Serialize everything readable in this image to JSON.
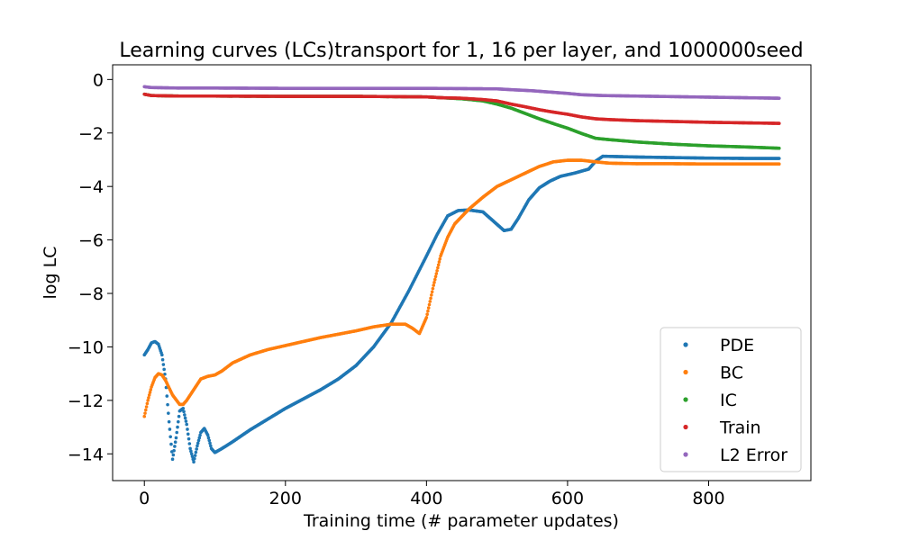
{
  "chart_data": {
    "type": "scatter",
    "title": "Learning curves (LCs)transport for 1, 16 per layer, and 1000000seed",
    "xlabel": "Training time (# parameter updates)",
    "ylabel": "log LC",
    "xlim": [
      -45,
      945
    ],
    "ylim": [
      -15,
      0.55
    ],
    "xticks": [
      0,
      200,
      400,
      600,
      800
    ],
    "yticks": [
      0,
      -2,
      -4,
      -6,
      -8,
      -10,
      -12,
      -14
    ],
    "grid": false,
    "legend_position": "lower-right",
    "series": [
      {
        "name": "PDE",
        "color": "#1f77b4",
        "points": [
          [
            0,
            -10.3
          ],
          [
            5,
            -10.1
          ],
          [
            10,
            -9.85
          ],
          [
            15,
            -9.8
          ],
          [
            20,
            -9.9
          ],
          [
            25,
            -10.3
          ],
          [
            30,
            -11.2
          ],
          [
            35,
            -12.8
          ],
          [
            40,
            -14.2
          ],
          [
            45,
            -13.4
          ],
          [
            50,
            -12.4
          ],
          [
            55,
            -12.3
          ],
          [
            60,
            -12.9
          ],
          [
            65,
            -13.8
          ],
          [
            70,
            -14.3
          ],
          [
            75,
            -13.7
          ],
          [
            80,
            -13.2
          ],
          [
            85,
            -13.05
          ],
          [
            90,
            -13.3
          ],
          [
            95,
            -13.8
          ],
          [
            100,
            -13.95
          ],
          [
            110,
            -13.8
          ],
          [
            125,
            -13.55
          ],
          [
            150,
            -13.1
          ],
          [
            175,
            -12.7
          ],
          [
            200,
            -12.3
          ],
          [
            225,
            -11.95
          ],
          [
            250,
            -11.6
          ],
          [
            275,
            -11.2
          ],
          [
            300,
            -10.7
          ],
          [
            325,
            -10.0
          ],
          [
            350,
            -9.1
          ],
          [
            375,
            -7.9
          ],
          [
            400,
            -6.6
          ],
          [
            415,
            -5.8
          ],
          [
            430,
            -5.1
          ],
          [
            445,
            -4.9
          ],
          [
            460,
            -4.88
          ],
          [
            480,
            -4.95
          ],
          [
            495,
            -5.3
          ],
          [
            510,
            -5.65
          ],
          [
            520,
            -5.6
          ],
          [
            530,
            -5.2
          ],
          [
            545,
            -4.5
          ],
          [
            560,
            -4.05
          ],
          [
            575,
            -3.8
          ],
          [
            590,
            -3.62
          ],
          [
            610,
            -3.5
          ],
          [
            630,
            -3.35
          ],
          [
            640,
            -3.05
          ],
          [
            650,
            -2.87
          ],
          [
            700,
            -2.9
          ],
          [
            750,
            -2.92
          ],
          [
            800,
            -2.94
          ],
          [
            850,
            -2.95
          ],
          [
            900,
            -2.95
          ]
        ]
      },
      {
        "name": "BC",
        "color": "#ff7f0e",
        "points": [
          [
            0,
            -12.6
          ],
          [
            5,
            -12.0
          ],
          [
            10,
            -11.5
          ],
          [
            15,
            -11.15
          ],
          [
            20,
            -11.0
          ],
          [
            25,
            -11.05
          ],
          [
            30,
            -11.25
          ],
          [
            40,
            -11.8
          ],
          [
            50,
            -12.15
          ],
          [
            55,
            -12.15
          ],
          [
            60,
            -12.0
          ],
          [
            70,
            -11.6
          ],
          [
            80,
            -11.2
          ],
          [
            90,
            -11.1
          ],
          [
            100,
            -11.05
          ],
          [
            110,
            -10.9
          ],
          [
            125,
            -10.6
          ],
          [
            150,
            -10.3
          ],
          [
            175,
            -10.1
          ],
          [
            200,
            -9.95
          ],
          [
            250,
            -9.65
          ],
          [
            300,
            -9.4
          ],
          [
            325,
            -9.25
          ],
          [
            350,
            -9.15
          ],
          [
            370,
            -9.15
          ],
          [
            380,
            -9.3
          ],
          [
            390,
            -9.5
          ],
          [
            400,
            -8.9
          ],
          [
            410,
            -7.7
          ],
          [
            420,
            -6.6
          ],
          [
            430,
            -5.9
          ],
          [
            440,
            -5.4
          ],
          [
            460,
            -4.85
          ],
          [
            480,
            -4.4
          ],
          [
            500,
            -4.0
          ],
          [
            520,
            -3.75
          ],
          [
            540,
            -3.5
          ],
          [
            560,
            -3.25
          ],
          [
            580,
            -3.08
          ],
          [
            600,
            -3.02
          ],
          [
            620,
            -3.02
          ],
          [
            640,
            -3.08
          ],
          [
            660,
            -3.13
          ],
          [
            700,
            -3.15
          ],
          [
            750,
            -3.15
          ],
          [
            800,
            -3.16
          ],
          [
            850,
            -3.16
          ],
          [
            900,
            -3.16
          ]
        ]
      },
      {
        "name": "IC",
        "color": "#2ca02c",
        "points": [
          [
            0,
            -0.55
          ],
          [
            10,
            -0.6
          ],
          [
            50,
            -0.62
          ],
          [
            100,
            -0.62
          ],
          [
            200,
            -0.63
          ],
          [
            300,
            -0.63
          ],
          [
            400,
            -0.65
          ],
          [
            420,
            -0.68
          ],
          [
            450,
            -0.72
          ],
          [
            480,
            -0.8
          ],
          [
            500,
            -0.92
          ],
          [
            520,
            -1.07
          ],
          [
            540,
            -1.27
          ],
          [
            560,
            -1.47
          ],
          [
            580,
            -1.65
          ],
          [
            600,
            -1.82
          ],
          [
            620,
            -2.02
          ],
          [
            640,
            -2.2
          ],
          [
            660,
            -2.25
          ],
          [
            700,
            -2.34
          ],
          [
            750,
            -2.42
          ],
          [
            800,
            -2.48
          ],
          [
            850,
            -2.52
          ],
          [
            900,
            -2.57
          ]
        ]
      },
      {
        "name": "Train",
        "color": "#d62728",
        "points": [
          [
            0,
            -0.55
          ],
          [
            10,
            -0.6
          ],
          [
            50,
            -0.62
          ],
          [
            100,
            -0.62
          ],
          [
            200,
            -0.63
          ],
          [
            300,
            -0.63
          ],
          [
            400,
            -0.65
          ],
          [
            420,
            -0.68
          ],
          [
            450,
            -0.7
          ],
          [
            480,
            -0.75
          ],
          [
            500,
            -0.8
          ],
          [
            520,
            -0.92
          ],
          [
            540,
            -1.02
          ],
          [
            560,
            -1.13
          ],
          [
            580,
            -1.22
          ],
          [
            600,
            -1.3
          ],
          [
            620,
            -1.4
          ],
          [
            640,
            -1.47
          ],
          [
            660,
            -1.5
          ],
          [
            700,
            -1.54
          ],
          [
            750,
            -1.57
          ],
          [
            800,
            -1.6
          ],
          [
            850,
            -1.62
          ],
          [
            900,
            -1.64
          ]
        ]
      },
      {
        "name": "L2 Error",
        "color": "#9467bd",
        "points": [
          [
            0,
            -0.27
          ],
          [
            10,
            -0.3
          ],
          [
            50,
            -0.32
          ],
          [
            100,
            -0.32
          ],
          [
            200,
            -0.33
          ],
          [
            300,
            -0.33
          ],
          [
            400,
            -0.33
          ],
          [
            500,
            -0.35
          ],
          [
            520,
            -0.38
          ],
          [
            550,
            -0.42
          ],
          [
            580,
            -0.48
          ],
          [
            600,
            -0.52
          ],
          [
            620,
            -0.57
          ],
          [
            650,
            -0.6
          ],
          [
            700,
            -0.62
          ],
          [
            750,
            -0.64
          ],
          [
            800,
            -0.66
          ],
          [
            850,
            -0.68
          ],
          [
            900,
            -0.7
          ]
        ]
      }
    ]
  }
}
